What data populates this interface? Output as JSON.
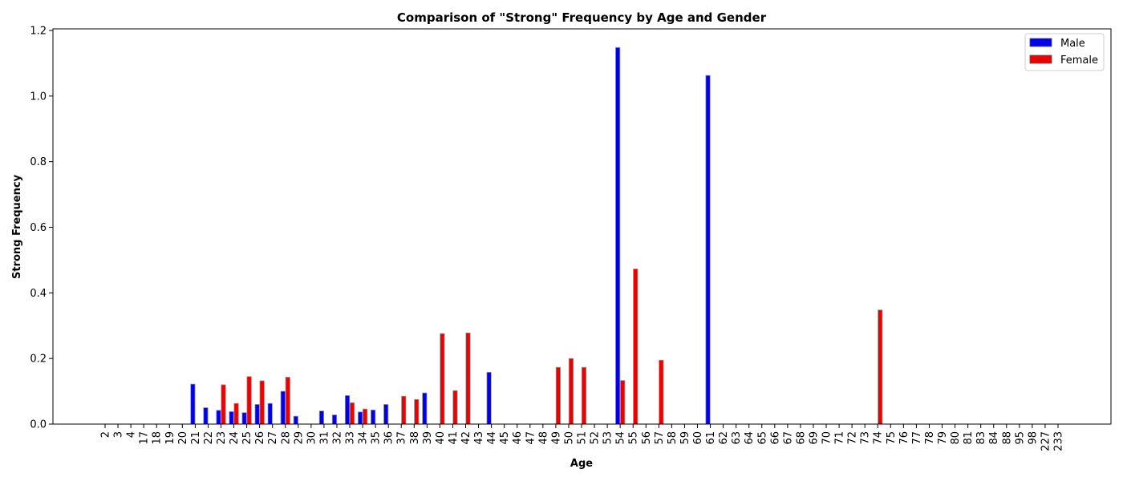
{
  "chart_data": {
    "type": "bar",
    "title": "Comparison of \"Strong\" Frequency by Age and Gender",
    "xlabel": "Age",
    "ylabel": "Strong Frequency",
    "ylim": [
      0,
      1.2
    ],
    "yticks": [
      "0.0",
      "0.2",
      "0.4",
      "0.6",
      "0.8",
      "1.0",
      "1.2"
    ],
    "grid": false,
    "legend_position": "top-right",
    "categories": [
      "2",
      "3",
      "4",
      "17",
      "18",
      "19",
      "20",
      "21",
      "22",
      "23",
      "24",
      "25",
      "26",
      "27",
      "28",
      "29",
      "30",
      "31",
      "32",
      "33",
      "34",
      "35",
      "36",
      "37",
      "38",
      "39",
      "40",
      "41",
      "42",
      "43",
      "44",
      "45",
      "46",
      "47",
      "48",
      "49",
      "50",
      "51",
      "52",
      "53",
      "54",
      "55",
      "56",
      "57",
      "58",
      "59",
      "60",
      "61",
      "62",
      "63",
      "64",
      "65",
      "66",
      "67",
      "68",
      "69",
      "70",
      "71",
      "72",
      "73",
      "74",
      "75",
      "76",
      "77",
      "78",
      "79",
      "80",
      "81",
      "83",
      "84",
      "88",
      "95",
      "98",
      "227",
      "233"
    ],
    "series": [
      {
        "name": "Male",
        "color": "#0000ee",
        "values": [
          0,
          0,
          0,
          0,
          0,
          0,
          0,
          0.122,
          0.05,
          0.042,
          0.038,
          0.035,
          0.06,
          0.063,
          0.1,
          0.024,
          0,
          0.04,
          0.028,
          0.087,
          0.037,
          0.043,
          0.06,
          0,
          0,
          0.095,
          0,
          0,
          0,
          0,
          0.158,
          0,
          0,
          0,
          0,
          0,
          0,
          0,
          0,
          0,
          1.148,
          0,
          0,
          0,
          0,
          0,
          0,
          1.063,
          0,
          0,
          0,
          0,
          0,
          0,
          0,
          0,
          0,
          0,
          0,
          0,
          0,
          0,
          0,
          0,
          0,
          0,
          0,
          0,
          0,
          0,
          0,
          0,
          0,
          0,
          0
        ]
      },
      {
        "name": "Female",
        "color": "#ee0000",
        "values": [
          0,
          0,
          0,
          0,
          0,
          0,
          0,
          0,
          0,
          0.12,
          0.063,
          0.145,
          0.132,
          0,
          0.143,
          0,
          0,
          0,
          0,
          0.065,
          0.046,
          0,
          0,
          0.085,
          0.075,
          0,
          0.276,
          0.102,
          0.278,
          0,
          0,
          0,
          0,
          0,
          0,
          0.173,
          0.2,
          0.173,
          0,
          0,
          0.133,
          0.473,
          0,
          0.195,
          0,
          0,
          0,
          0,
          0,
          0,
          0,
          0,
          0,
          0,
          0,
          0,
          0,
          0,
          0,
          0,
          0.348,
          0,
          0,
          0,
          0,
          0,
          0,
          0,
          0,
          0,
          0,
          0,
          0,
          0,
          0
        ]
      }
    ]
  }
}
